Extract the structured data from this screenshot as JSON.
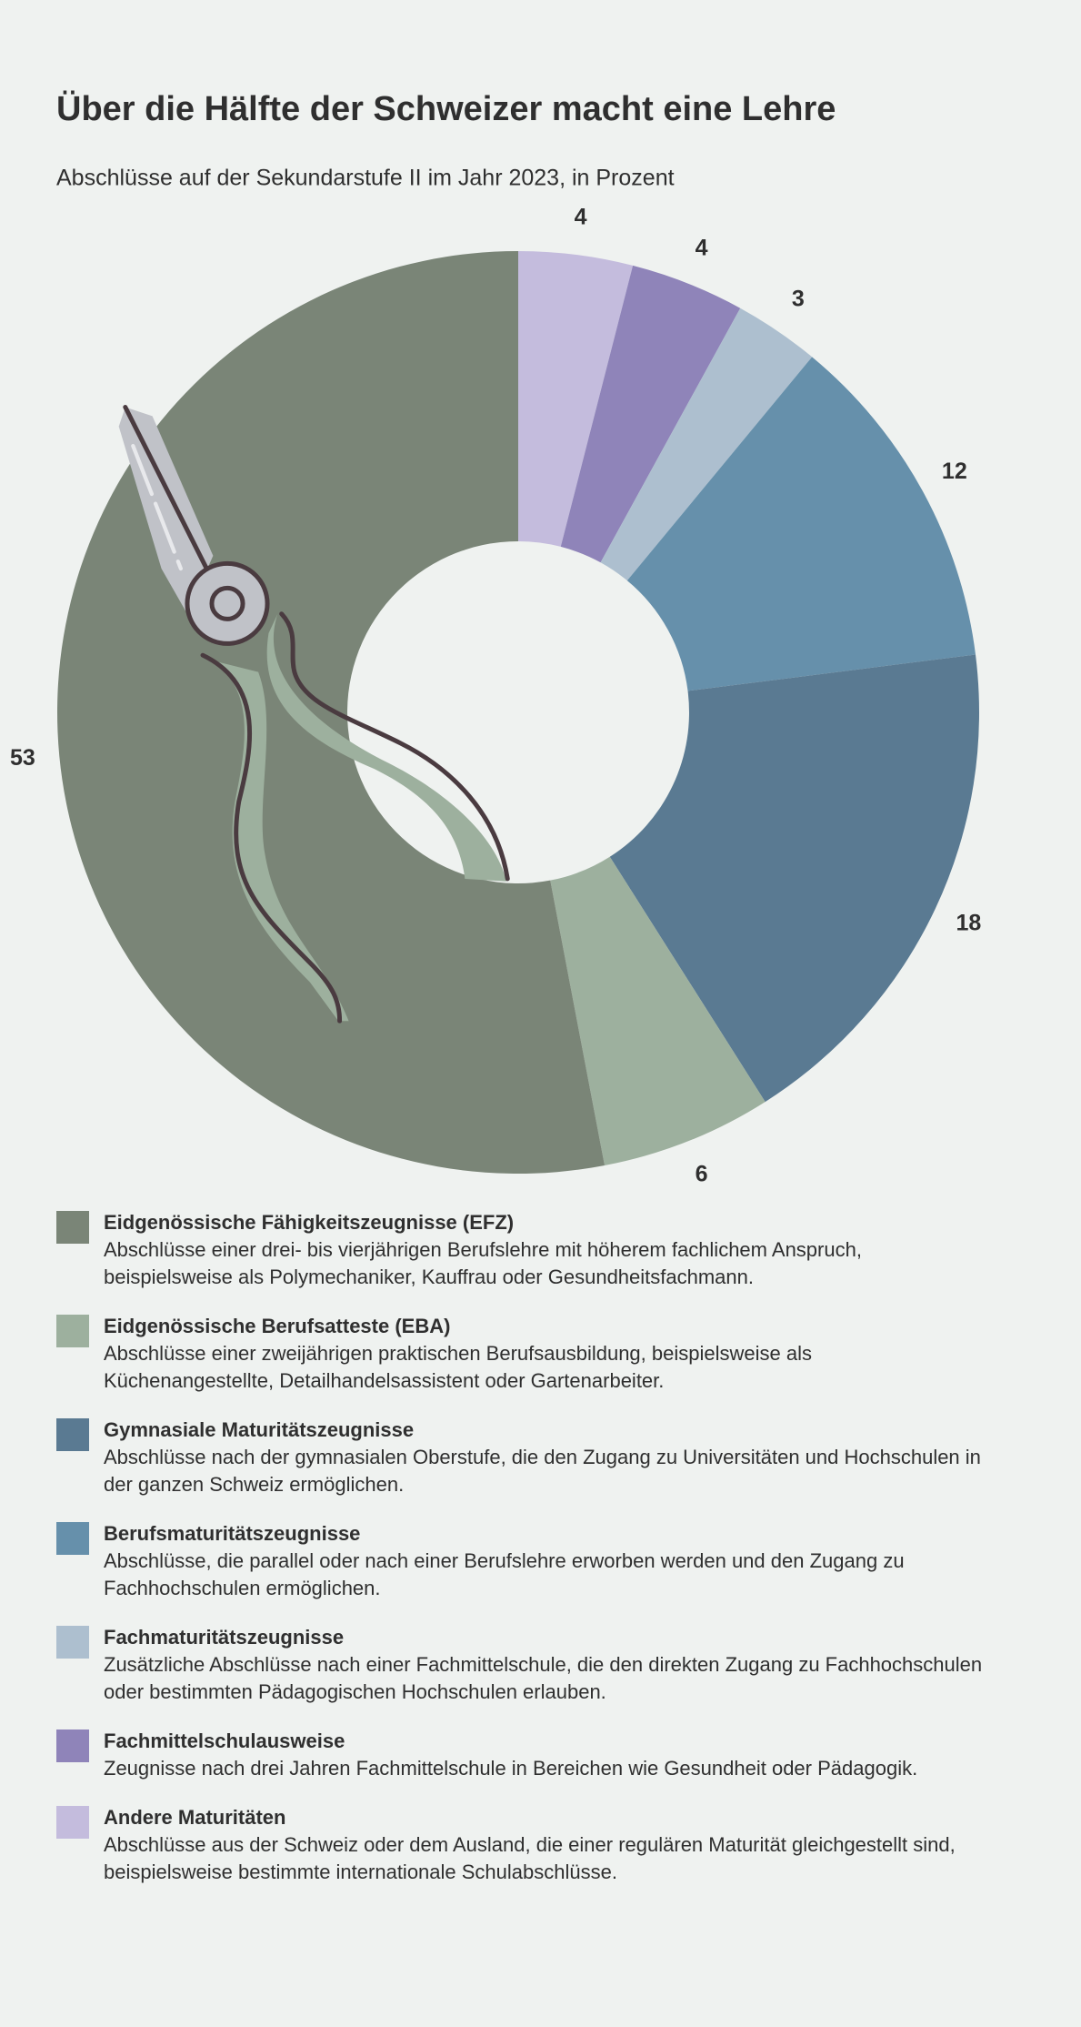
{
  "chart_data": {
    "type": "donut",
    "title": "Über die Hälfte der Schweizer macht eine Lehre",
    "subtitle": "Abschlüsse auf der Sekundarstufe II im Jahr 2023, in Prozent",
    "categories": [
      "Eidgenössische Fähigkeitszeugnisse (EFZ)",
      "Eidgenössische Berufsatteste (EBA)",
      "Gymnasiale Maturitätszeugnisse",
      "Berufsmaturitätszeugnisse",
      "Fachmaturitätszeugnisse",
      "Fachmittelschulausweise",
      "Andere Maturitäten"
    ],
    "descriptions": [
      "Abschlüsse einer drei- bis vierjährigen Berufslehre mit höherem fachlichem Anspruch, beispielsweise als Polymechaniker, Kauffrau oder Gesundheitsfachmann.",
      "Abschlüsse einer zweijährigen praktischen Berufsausbildung, beispielsweise als Küchenangestellte, Detailhandelsassistent oder Gartenarbeiter.",
      "Abschlüsse nach der gymnasialen Oberstufe, die den Zugang zu Universitäten und Hochschulen in der ganzen Schweiz ermöglichen.",
      "Abschlüsse, die parallel oder nach einer Berufslehre erworben werden und den Zugang zu Fachhochschulen ermöglichen.",
      "Zusätzliche Abschlüsse nach einer Fachmittelschule, die den direkten Zugang zu Fachhochschulen oder bestimmten Pädagogischen Hochschulen erlauben.",
      "Zeugnisse nach drei Jahren Fachmittelschule in Bereichen wie Gesundheit oder Pädagogik.",
      "Abschlüsse aus der Schweiz oder dem Ausland, die einer regulären Maturität gleichgestellt sind, beispielsweise bestimmte internationale Schulabschlüsse."
    ],
    "values": [
      53,
      6,
      18,
      12,
      3,
      4,
      4
    ],
    "colors": [
      "#7a8577",
      "#9db09e",
      "#5a7a92",
      "#6690ab",
      "#adbfcf",
      "#8f84b9",
      "#c4bcdd"
    ]
  }
}
